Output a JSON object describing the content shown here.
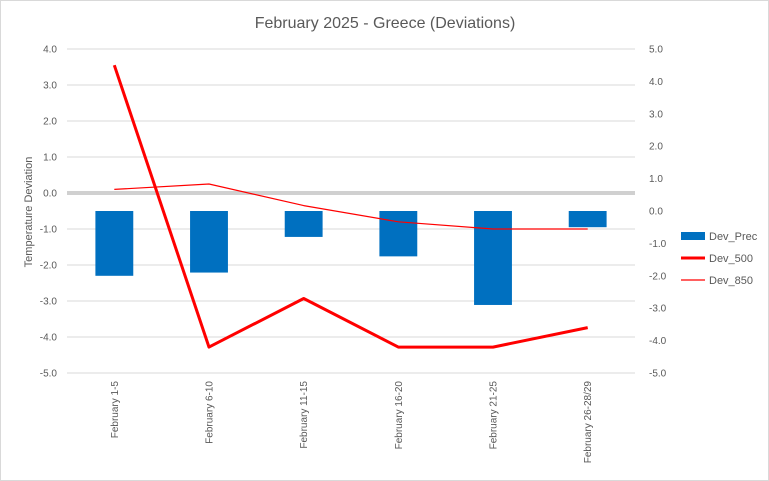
{
  "chart_data": {
    "type": "bar",
    "title": "February 2025 - Greece (Deviations)",
    "ylabel": "Temperature  Deviation",
    "y2label": "",
    "xlabel": "",
    "categories": [
      "February 1-5",
      "February 6-10",
      "February 11-15",
      "February 16-20",
      "February 21-25",
      "February 26-28/29"
    ],
    "ylim": [
      -5.0,
      4.0
    ],
    "y_ticks": [
      "4.0",
      "3.0",
      "2.0",
      "1.0",
      "0.0",
      "-1.0",
      "-2.0",
      "-3.0",
      "-4.0",
      "-5.0"
    ],
    "y2lim": [
      -5.0,
      5.0
    ],
    "y2_ticks": [
      "5.0",
      "4.0",
      "3.0",
      "2.0",
      "1.0",
      "0.0",
      "-1.0",
      "-2.0",
      "-3.0",
      "-4.0",
      "-5.0"
    ],
    "grid": true,
    "legend_position": "right",
    "series": [
      {
        "name": "Dev_Prec",
        "type": "bar",
        "axis": "secondary",
        "color": "#0070c0",
        "values": [
          -2.0,
          -1.9,
          -0.8,
          -1.4,
          -2.9,
          -0.5
        ]
      },
      {
        "name": "Dev_500",
        "type": "line",
        "axis": "secondary",
        "color": "#ff0000",
        "width": "thick",
        "values": [
          4.5,
          -4.2,
          -2.7,
          -4.2,
          -4.2,
          -3.6
        ]
      },
      {
        "name": "Dev_850",
        "type": "line",
        "axis": "primary",
        "color": "#ff0000",
        "width": "thin",
        "values": [
          0.1,
          0.25,
          -0.35,
          -0.8,
          -1.0,
          -1.0
        ]
      }
    ]
  }
}
